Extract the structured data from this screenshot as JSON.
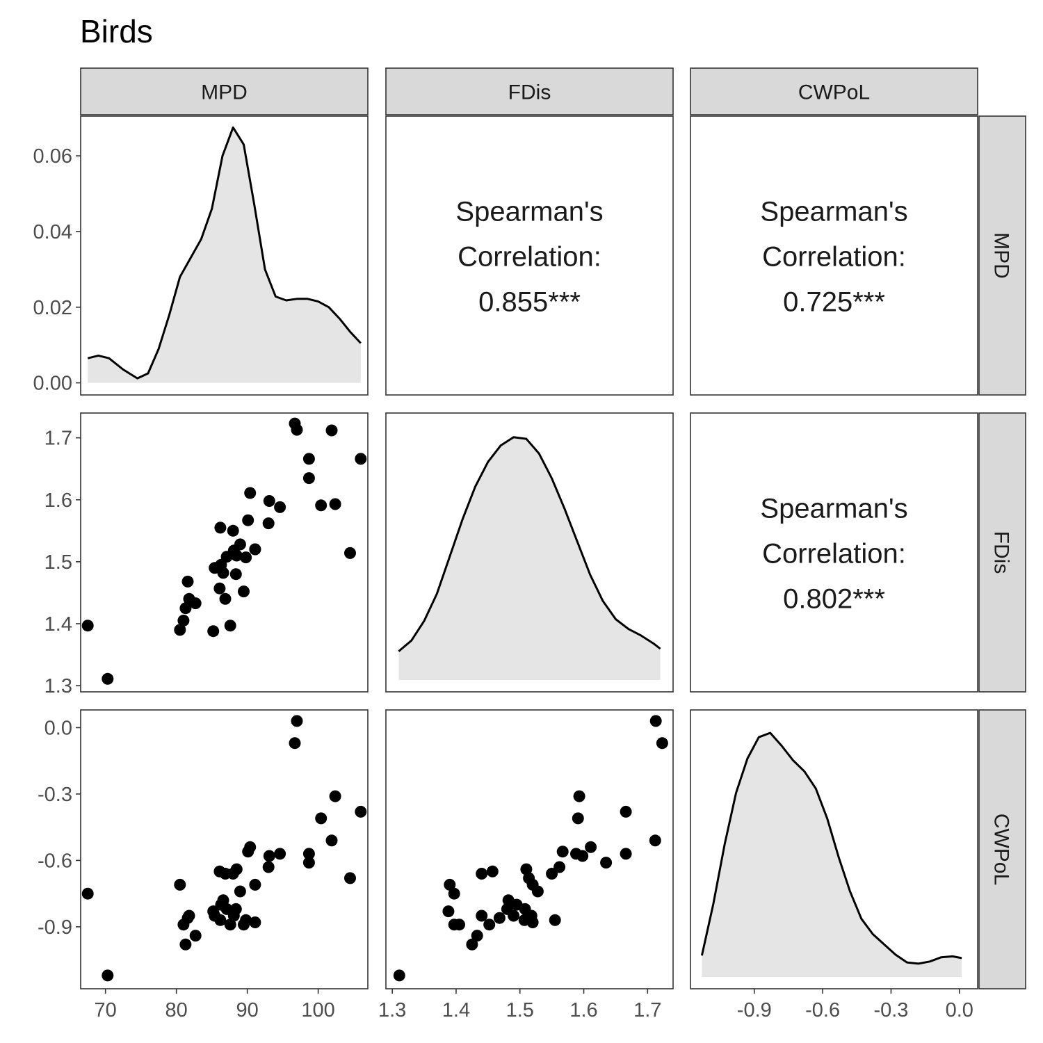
{
  "title": "Birds",
  "variables": [
    "MPD",
    "FDis",
    "CWPoL"
  ],
  "colors": {
    "strip_fill": "#d9d9d9",
    "panel_border": "#333333",
    "density_fill": "#e5e5e5",
    "density_line": "#000000",
    "point": "#000000",
    "tick_text": "#4d4d4d"
  },
  "chart_data": {
    "type": "scatter",
    "layout": "pairs-matrix",
    "title": "Birds",
    "axes": {
      "MPD": {
        "ticks": [
          70,
          80,
          90,
          100
        ],
        "tick_labels": [
          "70",
          "80",
          "90",
          "100"
        ],
        "range": [
          66.5,
          107
        ],
        "density_ticks": [
          0.0,
          0.02,
          0.04,
          0.06
        ],
        "density_tick_labels": [
          "0.00",
          "0.02",
          "0.04",
          "0.06"
        ],
        "density_range": [
          -0.0032,
          0.0705
        ]
      },
      "FDis": {
        "ticks": [
          1.3,
          1.4,
          1.5,
          1.6,
          1.7
        ],
        "tick_labels": [
          "1.3",
          "1.4",
          "1.5",
          "1.6",
          "1.7"
        ],
        "range": [
          1.29,
          1.74
        ]
      },
      "CWPoL": {
        "ticks": [
          -0.9,
          -0.6,
          -0.3,
          0.0
        ],
        "tick_labels": [
          "-0.9",
          "-0.6",
          "-0.3",
          "0.0"
        ],
        "range": [
          -1.18,
          0.08
        ]
      }
    },
    "correlations": [
      {
        "row": "MPD",
        "col": "FDis",
        "lines": [
          "Spearman's",
          "Correlation:",
          "0.855***"
        ]
      },
      {
        "row": "MPD",
        "col": "CWPoL",
        "lines": [
          "Spearman's",
          "Correlation:",
          "0.725***"
        ]
      },
      {
        "row": "FDis",
        "col": "CWPoL",
        "lines": [
          "Spearman's",
          "Correlation:",
          "0.802***"
        ]
      }
    ],
    "densities": {
      "MPD": [
        [
          67.5,
          0.0065
        ],
        [
          69,
          0.0072
        ],
        [
          70.5,
          0.0065
        ],
        [
          72.5,
          0.0035
        ],
        [
          74.5,
          0.0012
        ],
        [
          76,
          0.0025
        ],
        [
          77.5,
          0.009
        ],
        [
          79,
          0.018
        ],
        [
          80.5,
          0.028
        ],
        [
          82,
          0.033
        ],
        [
          83.5,
          0.038
        ],
        [
          85,
          0.046
        ],
        [
          86.5,
          0.06
        ],
        [
          88,
          0.0675
        ],
        [
          89.5,
          0.063
        ],
        [
          91,
          0.047
        ],
        [
          92.5,
          0.03
        ],
        [
          94,
          0.0228
        ],
        [
          95.5,
          0.0218
        ],
        [
          97,
          0.0222
        ],
        [
          98.5,
          0.0222
        ],
        [
          100,
          0.0215
        ],
        [
          101.5,
          0.02
        ],
        [
          103,
          0.017
        ],
        [
          104.5,
          0.0135
        ],
        [
          106,
          0.0105
        ]
      ],
      "FDis": [
        [
          1.31,
          0.35
        ],
        [
          1.33,
          0.48
        ],
        [
          1.35,
          0.72
        ],
        [
          1.37,
          1.05
        ],
        [
          1.39,
          1.5
        ],
        [
          1.41,
          1.95
        ],
        [
          1.43,
          2.35
        ],
        [
          1.45,
          2.65
        ],
        [
          1.47,
          2.85
        ],
        [
          1.49,
          2.95
        ],
        [
          1.51,
          2.93
        ],
        [
          1.53,
          2.75
        ],
        [
          1.55,
          2.45
        ],
        [
          1.57,
          2.08
        ],
        [
          1.59,
          1.68
        ],
        [
          1.61,
          1.28
        ],
        [
          1.63,
          0.96
        ],
        [
          1.65,
          0.74
        ],
        [
          1.67,
          0.62
        ],
        [
          1.69,
          0.54
        ],
        [
          1.71,
          0.44
        ],
        [
          1.72,
          0.38
        ]
      ],
      "CWPoL": [
        [
          -1.13,
          0.25
        ],
        [
          -1.08,
          0.85
        ],
        [
          -1.03,
          1.55
        ],
        [
          -0.98,
          2.15
        ],
        [
          -0.93,
          2.55
        ],
        [
          -0.88,
          2.8
        ],
        [
          -0.83,
          2.85
        ],
        [
          -0.78,
          2.7
        ],
        [
          -0.73,
          2.53
        ],
        [
          -0.68,
          2.4
        ],
        [
          -0.63,
          2.2
        ],
        [
          -0.58,
          1.85
        ],
        [
          -0.53,
          1.4
        ],
        [
          -0.48,
          1.0
        ],
        [
          -0.43,
          0.68
        ],
        [
          -0.38,
          0.5
        ],
        [
          -0.33,
          0.38
        ],
        [
          -0.28,
          0.26
        ],
        [
          -0.23,
          0.17
        ],
        [
          -0.18,
          0.155
        ],
        [
          -0.13,
          0.18
        ],
        [
          -0.08,
          0.23
        ],
        [
          -0.03,
          0.24
        ],
        [
          0.01,
          0.22
        ]
      ]
    },
    "density_scales": {
      "FDis": [
        0.0,
        3.1
      ],
      "CWPoL": [
        0.0,
        2.98
      ]
    },
    "points": [
      {
        "MPD": 67.5,
        "FDis": 1.397,
        "CWPoL": -0.75
      },
      {
        "MPD": 70.3,
        "FDis": 1.311,
        "CWPoL": -1.12
      },
      {
        "MPD": 80.5,
        "FDis": 1.39,
        "CWPoL": -0.71
      },
      {
        "MPD": 81.0,
        "FDis": 1.405,
        "CWPoL": -0.89
      },
      {
        "MPD": 81.3,
        "FDis": 1.425,
        "CWPoL": -0.98
      },
      {
        "MPD": 81.6,
        "FDis": 1.468,
        "CWPoL": -0.86
      },
      {
        "MPD": 81.8,
        "FDis": 1.44,
        "CWPoL": -0.85
      },
      {
        "MPD": 82.7,
        "FDis": 1.433,
        "CWPoL": -0.94
      },
      {
        "MPD": 85.2,
        "FDis": 1.388,
        "CWPoL": -0.83
      },
      {
        "MPD": 85.4,
        "FDis": 1.49,
        "CWPoL": -0.85
      },
      {
        "MPD": 86.1,
        "FDis": 1.457,
        "CWPoL": -0.65
      },
      {
        "MPD": 86.2,
        "FDis": 1.555,
        "CWPoL": -0.87
      },
      {
        "MPD": 86.3,
        "FDis": 1.495,
        "CWPoL": -0.8
      },
      {
        "MPD": 86.6,
        "FDis": 1.482,
        "CWPoL": -0.78
      },
      {
        "MPD": 86.9,
        "FDis": 1.44,
        "CWPoL": -0.66
      },
      {
        "MPD": 87.1,
        "FDis": 1.508,
        "CWPoL": -0.82
      },
      {
        "MPD": 87.6,
        "FDis": 1.397,
        "CWPoL": -0.89
      },
      {
        "MPD": 88.0,
        "FDis": 1.55,
        "CWPoL": -0.66
      },
      {
        "MPD": 88.1,
        "FDis": 1.518,
        "CWPoL": -0.85
      },
      {
        "MPD": 88.4,
        "FDis": 1.48,
        "CWPoL": -0.82
      },
      {
        "MPD": 88.5,
        "FDis": 1.51,
        "CWPoL": -0.64
      },
      {
        "MPD": 89.0,
        "FDis": 1.528,
        "CWPoL": -0.74
      },
      {
        "MPD": 89.5,
        "FDis": 1.452,
        "CWPoL": -0.89
      },
      {
        "MPD": 89.8,
        "FDis": 1.507,
        "CWPoL": -0.87
      },
      {
        "MPD": 90.1,
        "FDis": 1.567,
        "CWPoL": -0.56
      },
      {
        "MPD": 90.4,
        "FDis": 1.611,
        "CWPoL": -0.54
      },
      {
        "MPD": 91.1,
        "FDis": 1.52,
        "CWPoL": -0.71
      },
      {
        "MPD": 91.1,
        "FDis": 1.52,
        "CWPoL": -0.88
      },
      {
        "MPD": 93.0,
        "FDis": 1.562,
        "CWPoL": -0.63
      },
      {
        "MPD": 93.1,
        "FDis": 1.598,
        "CWPoL": -0.58
      },
      {
        "MPD": 94.6,
        "FDis": 1.588,
        "CWPoL": -0.57
      },
      {
        "MPD": 96.7,
        "FDis": 1.723,
        "CWPoL": -0.07
      },
      {
        "MPD": 97.0,
        "FDis": 1.713,
        "CWPoL": 0.03
      },
      {
        "MPD": 98.7,
        "FDis": 1.666,
        "CWPoL": -0.57
      },
      {
        "MPD": 98.7,
        "FDis": 1.635,
        "CWPoL": -0.61
      },
      {
        "MPD": 100.4,
        "FDis": 1.591,
        "CWPoL": -0.41
      },
      {
        "MPD": 101.9,
        "FDis": 1.712,
        "CWPoL": -0.51
      },
      {
        "MPD": 102.4,
        "FDis": 1.593,
        "CWPoL": -0.31
      },
      {
        "MPD": 104.5,
        "FDis": 1.514,
        "CWPoL": -0.68
      },
      {
        "MPD": 106.0,
        "FDis": 1.666,
        "CWPoL": -0.38
      }
    ]
  }
}
